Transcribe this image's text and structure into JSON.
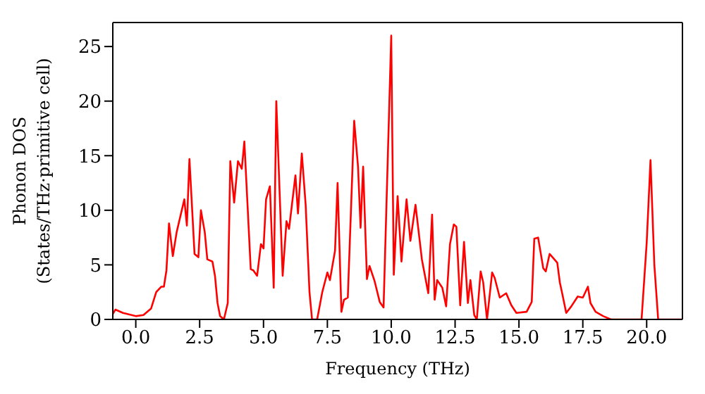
{
  "chart_data": {
    "type": "line",
    "xlabel": "Frequency (THz)",
    "ylabel": "Phonon DOS\n(States/THz·primitive cell)",
    "x": [
      -0.9,
      -0.8,
      -0.5,
      0,
      0.3,
      0.6,
      0.8,
      1.0,
      1.1,
      1.2,
      1.3,
      1.45,
      1.6,
      1.9,
      2.0,
      2.1,
      2.3,
      2.45,
      2.55,
      2.7,
      2.8,
      3.0,
      3.1,
      3.2,
      3.3,
      3.45,
      3.6,
      3.7,
      3.85,
      4.0,
      4.15,
      4.25,
      4.5,
      4.6,
      4.75,
      4.9,
      5.0,
      5.1,
      5.25,
      5.4,
      5.5,
      5.75,
      5.9,
      6.0,
      6.25,
      6.35,
      6.5,
      6.65,
      6.8,
      6.9,
      7.1,
      7.3,
      7.5,
      7.6,
      7.8,
      7.9,
      8.05,
      8.15,
      8.3,
      8.55,
      8.7,
      8.8,
      8.9,
      9.05,
      9.15,
      9.35,
      9.55,
      9.7,
      10.0,
      10.1,
      10.25,
      10.4,
      10.6,
      10.75,
      10.95,
      11.2,
      11.45,
      11.6,
      11.7,
      11.8,
      12.0,
      12.15,
      12.3,
      12.45,
      12.55,
      12.7,
      12.85,
      13.0,
      13.1,
      13.25,
      13.35,
      13.5,
      13.6,
      13.75,
      13.95,
      14.05,
      14.25,
      14.5,
      14.7,
      14.9,
      15.3,
      15.5,
      15.6,
      15.75,
      15.95,
      16.05,
      16.2,
      16.5,
      16.6,
      16.7,
      16.85,
      17.05,
      17.3,
      17.5,
      17.7,
      17.8,
      18.0,
      18.3,
      18.6,
      19.8,
      20.0,
      20.15,
      20.3,
      20.45,
      21.4
    ],
    "series": [
      {
        "color": "#ff0000",
        "values": [
          0.5,
          0.9,
          0.6,
          0.3,
          0.4,
          1.0,
          2.5,
          3.0,
          3.0,
          4.5,
          8.8,
          5.8,
          8.0,
          11.0,
          8.6,
          14.7,
          6.0,
          5.7,
          10.0,
          8.0,
          5.5,
          5.3,
          4.0,
          1.5,
          0.3,
          0,
          1.5,
          14.5,
          10.7,
          14.5,
          13.8,
          16.3,
          4.6,
          4.5,
          4.0,
          6.9,
          6.5,
          11.0,
          12.2,
          2.9,
          20.0,
          4.0,
          9.0,
          8.3,
          13.2,
          9.7,
          15.2,
          10.5,
          2.5,
          0,
          0,
          2.5,
          4.3,
          3.6,
          6.3,
          12.5,
          0.7,
          1.8,
          2.0,
          18.2,
          14.0,
          8.4,
          14.0,
          3.7,
          4.9,
          3.5,
          1.6,
          1.1,
          26.0,
          4.1,
          11.3,
          5.3,
          11.0,
          7.2,
          10.5,
          5.5,
          2.4,
          9.6,
          1.8,
          3.6,
          2.9,
          1.2,
          6.9,
          8.7,
          8.5,
          1.3,
          7.1,
          1.5,
          3.6,
          0.4,
          0,
          4.4,
          3.4,
          0,
          4.3,
          3.8,
          2.0,
          2.4,
          1.3,
          0.6,
          0.7,
          1.6,
          7.4,
          7.5,
          4.7,
          4.4,
          6.0,
          5.2,
          3.4,
          2.3,
          0.6,
          1.2,
          2.1,
          2.0,
          3.0,
          1.5,
          0.7,
          0.3,
          0,
          0,
          7.0,
          14.6,
          5.0,
          0,
          0
        ]
      }
    ],
    "xlim": [
      -0.9,
      21.4
    ],
    "ylim": [
      0,
      27.2
    ],
    "xticks": [
      {
        "value": 0,
        "label": "0.0"
      },
      {
        "value": 2.5,
        "label": "2.5"
      },
      {
        "value": 5,
        "label": "5.0"
      },
      {
        "value": 7.5,
        "label": "7.5"
      },
      {
        "value": 10,
        "label": "10.0"
      },
      {
        "value": 12.5,
        "label": "12.5"
      },
      {
        "value": 15,
        "label": "15.0"
      },
      {
        "value": 17.5,
        "label": "17.5"
      },
      {
        "value": 20,
        "label": "20.0"
      }
    ],
    "yticks": [
      0,
      5,
      10,
      15,
      20,
      25
    ],
    "grid": false,
    "legend": false,
    "marker": "none",
    "line_style": "solid"
  }
}
